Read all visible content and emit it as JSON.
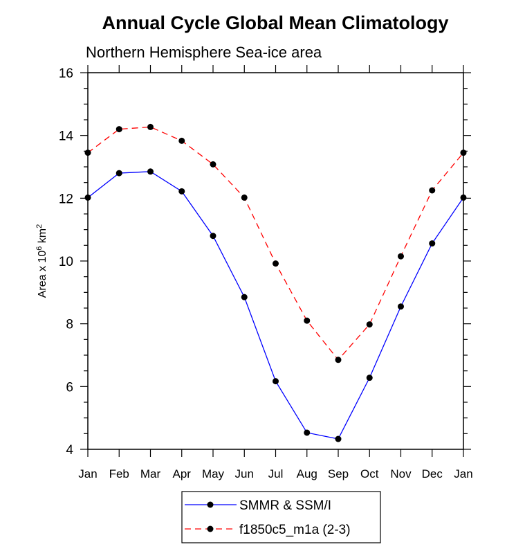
{
  "chart_data": {
    "type": "line",
    "title": "Annual Cycle Global Mean Climatology",
    "subtitle": "Northern Hemisphere Sea-ice area",
    "ylabel": {
      "prefix": "Area x 10",
      "exp1": "6",
      "mid": " km",
      "exp2": "2"
    },
    "xlabel": "",
    "categories": [
      "Jan",
      "Feb",
      "Mar",
      "Apr",
      "May",
      "Jun",
      "Jul",
      "Aug",
      "Sep",
      "Oct",
      "Nov",
      "Dec",
      "Jan"
    ],
    "ylim": [
      4,
      16
    ],
    "yticks": [
      4,
      6,
      8,
      10,
      12,
      14,
      16
    ],
    "series": [
      {
        "name": "SMMR & SSM/I",
        "color": "#0000ff",
        "dash": "solid",
        "values": [
          12.02,
          12.8,
          12.85,
          12.22,
          10.8,
          8.85,
          6.17,
          4.53,
          4.33,
          6.28,
          8.55,
          10.56,
          12.02
        ]
      },
      {
        "name": "f1850c5_m1a (2-3)",
        "color": "#ff0000",
        "dash": "dashed",
        "values": [
          13.45,
          14.2,
          14.27,
          13.83,
          13.08,
          12.02,
          9.92,
          8.1,
          6.85,
          7.98,
          10.15,
          12.25,
          13.45
        ]
      }
    ],
    "legend_position": "bottom-center",
    "grid": false
  }
}
